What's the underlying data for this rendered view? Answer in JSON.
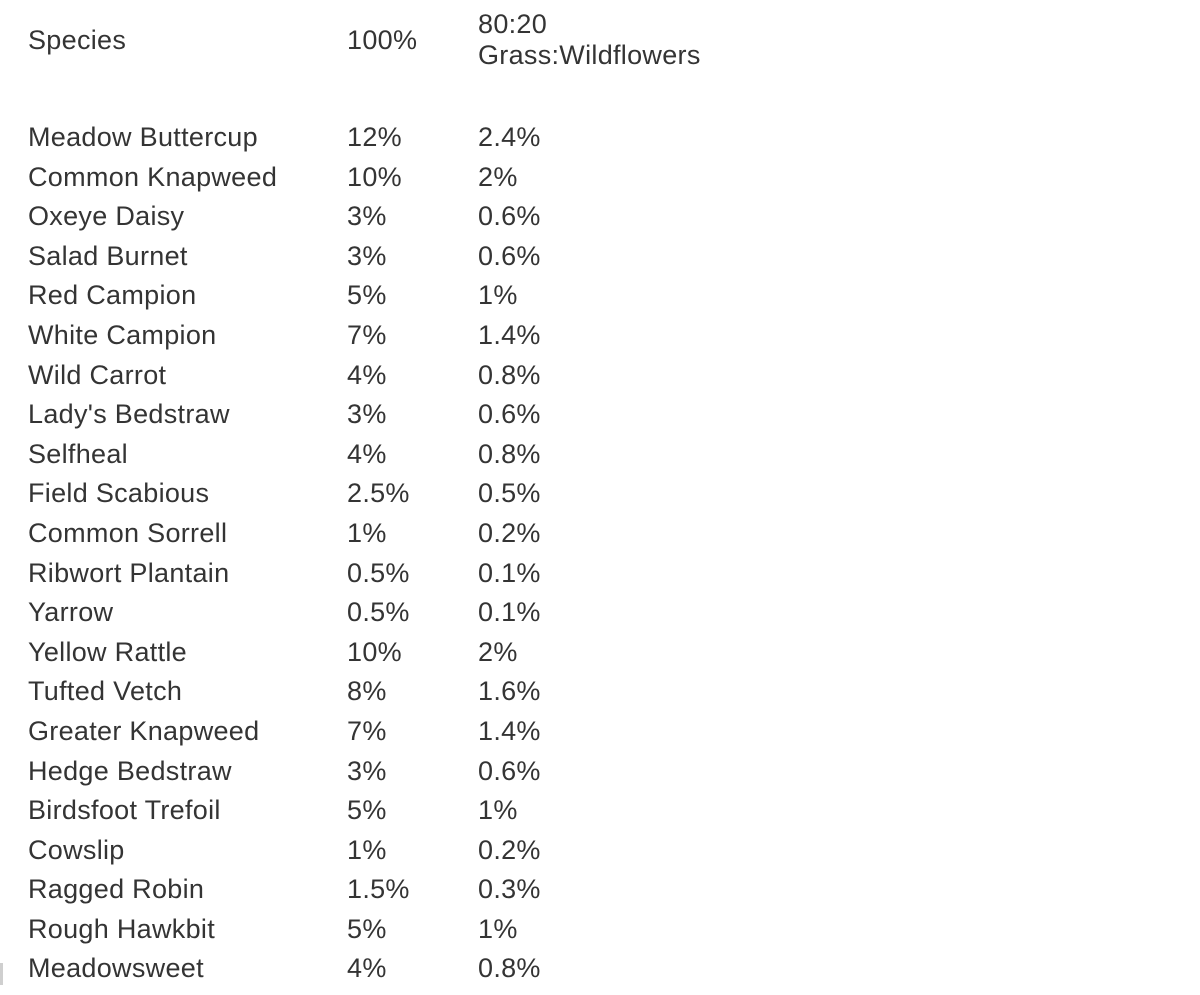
{
  "page": {
    "background_color": "#ffffff",
    "text_color": "#343434"
  },
  "table": {
    "header": {
      "species": "Species",
      "pct_100": "100%",
      "mix_line1": "80:20",
      "mix_line2": "Grass:Wildflowers"
    },
    "rows": [
      {
        "species": "Meadow Buttercup",
        "pct_100": "12%",
        "pct_80_20": "2.4%"
      },
      {
        "species": "Common Knapweed",
        "pct_100": "10%",
        "pct_80_20": "2%"
      },
      {
        "species": "Oxeye Daisy",
        "pct_100": "3%",
        "pct_80_20": "0.6%"
      },
      {
        "species": "Salad Burnet",
        "pct_100": "3%",
        "pct_80_20": "0.6%"
      },
      {
        "species": "Red Campion",
        "pct_100": "5%",
        "pct_80_20": "1%"
      },
      {
        "species": "White Campion",
        "pct_100": "7%",
        "pct_80_20": "1.4%"
      },
      {
        "species": "Wild Carrot",
        "pct_100": "4%",
        "pct_80_20": "0.8%"
      },
      {
        "species": "Lady's Bedstraw",
        "pct_100": "3%",
        "pct_80_20": "0.6%"
      },
      {
        "species": "Selfheal",
        "pct_100": "4%",
        "pct_80_20": "0.8%"
      },
      {
        "species": "Field Scabious",
        "pct_100": "2.5%",
        "pct_80_20": "0.5%"
      },
      {
        "species": "Common Sorrell",
        "pct_100": "1%",
        "pct_80_20": "0.2%"
      },
      {
        "species": "Ribwort Plantain",
        "pct_100": "0.5%",
        "pct_80_20": "0.1%"
      },
      {
        "species": "Yarrow",
        "pct_100": "0.5%",
        "pct_80_20": "0.1%"
      },
      {
        "species": "Yellow Rattle",
        "pct_100": "10%",
        "pct_80_20": "2%"
      },
      {
        "species": "Tufted Vetch",
        "pct_100": "8%",
        "pct_80_20": "1.6%"
      },
      {
        "species": "Greater Knapweed",
        "pct_100": "7%",
        "pct_80_20": "1.4%"
      },
      {
        "species": "Hedge Bedstraw",
        "pct_100": "3%",
        "pct_80_20": "0.6%"
      },
      {
        "species": "Birdsfoot Trefoil",
        "pct_100": "5%",
        "pct_80_20": "1%"
      },
      {
        "species": "Cowslip",
        "pct_100": "1%",
        "pct_80_20": "0.2%"
      },
      {
        "species": "Ragged Robin",
        "pct_100": "1.5%",
        "pct_80_20": "0.3%"
      },
      {
        "species": "Rough Hawkbit",
        "pct_100": "5%",
        "pct_80_20": "1%"
      },
      {
        "species": "Meadowsweet",
        "pct_100": "4%",
        "pct_80_20": "0.8%"
      }
    ]
  }
}
